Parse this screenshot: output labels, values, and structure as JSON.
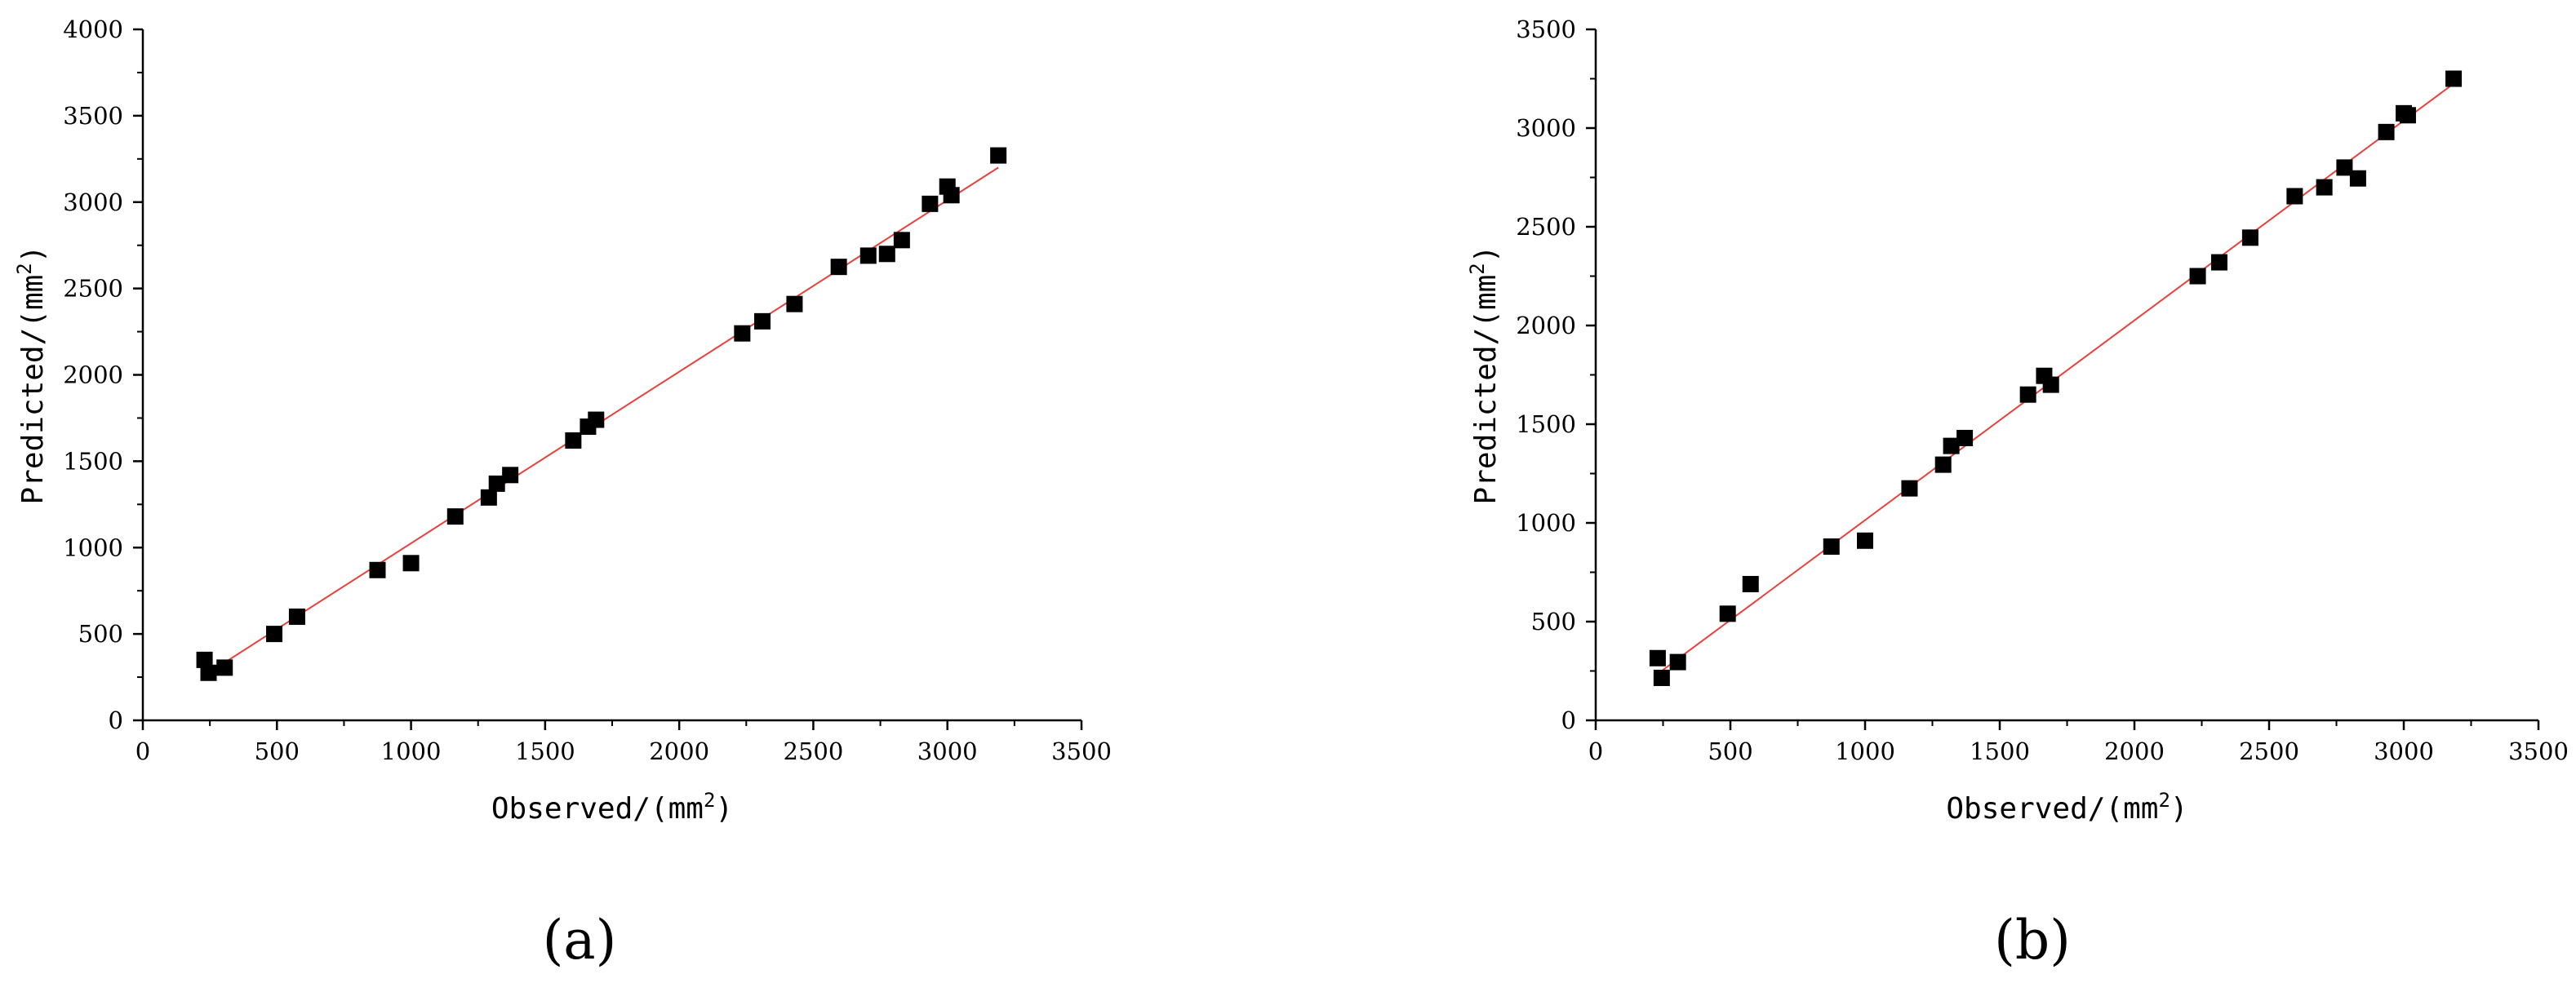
{
  "chart_data": [
    {
      "type": "scatter",
      "panel_label": "(a)",
      "xlabel": "Observed/(mm",
      "xlabel_sup": "2",
      "xlabel_tail": ")",
      "ylabel": "Predicted/(mm",
      "ylabel_sup": "2",
      "ylabel_tail": ")",
      "xlim": [
        0,
        3500
      ],
      "ylim": [
        0,
        4000
      ],
      "xticks": [
        0,
        500,
        1000,
        1500,
        2000,
        2500,
        3000,
        3500
      ],
      "yticks": [
        0,
        500,
        1000,
        1500,
        2000,
        2500,
        3000,
        3500,
        4000
      ],
      "grid": false,
      "marker_color": "#000000",
      "fit_line_color": "#e8413c",
      "fit_line": {
        "x": [
          225,
          3190
        ],
        "y": [
          255,
          3200
        ]
      },
      "points": [
        {
          "x": 230,
          "y": 350
        },
        {
          "x": 245,
          "y": 275
        },
        {
          "x": 305,
          "y": 305
        },
        {
          "x": 490,
          "y": 500
        },
        {
          "x": 575,
          "y": 600
        },
        {
          "x": 875,
          "y": 870
        },
        {
          "x": 1000,
          "y": 910
        },
        {
          "x": 1165,
          "y": 1180
        },
        {
          "x": 1290,
          "y": 1290
        },
        {
          "x": 1320,
          "y": 1370
        },
        {
          "x": 1370,
          "y": 1420
        },
        {
          "x": 1605,
          "y": 1620
        },
        {
          "x": 1660,
          "y": 1700
        },
        {
          "x": 1690,
          "y": 1740
        },
        {
          "x": 2235,
          "y": 2240
        },
        {
          "x": 2310,
          "y": 2310
        },
        {
          "x": 2430,
          "y": 2410
        },
        {
          "x": 2595,
          "y": 2625
        },
        {
          "x": 2705,
          "y": 2690
        },
        {
          "x": 2775,
          "y": 2700
        },
        {
          "x": 2830,
          "y": 2780
        },
        {
          "x": 2935,
          "y": 2990
        },
        {
          "x": 3000,
          "y": 3090
        },
        {
          "x": 3015,
          "y": 3040
        },
        {
          "x": 3190,
          "y": 3270
        }
      ]
    },
    {
      "type": "scatter",
      "panel_label": "(b)",
      "xlabel": "Observed/(mm",
      "xlabel_sup": "2",
      "xlabel_tail": ")",
      "ylabel": "Predicted/(mm",
      "ylabel_sup": "2",
      "ylabel_tail": ")",
      "xlim": [
        0,
        3500
      ],
      "ylim": [
        0,
        3500
      ],
      "xticks": [
        0,
        500,
        1000,
        1500,
        2000,
        2500,
        3000,
        3500
      ],
      "yticks": [
        0,
        500,
        1000,
        1500,
        2000,
        2500,
        3000,
        3500
      ],
      "grid": false,
      "marker_color": "#000000",
      "fit_line_color": "#e8413c",
      "fit_line": {
        "x": [
          225,
          3190
        ],
        "y": [
          230,
          3230
        ]
      },
      "points": [
        {
          "x": 230,
          "y": 315
        },
        {
          "x": 245,
          "y": 215
        },
        {
          "x": 305,
          "y": 295
        },
        {
          "x": 490,
          "y": 540
        },
        {
          "x": 575,
          "y": 690
        },
        {
          "x": 875,
          "y": 880
        },
        {
          "x": 1000,
          "y": 910
        },
        {
          "x": 1165,
          "y": 1175
        },
        {
          "x": 1290,
          "y": 1295
        },
        {
          "x": 1320,
          "y": 1390
        },
        {
          "x": 1370,
          "y": 1430
        },
        {
          "x": 1605,
          "y": 1650
        },
        {
          "x": 1665,
          "y": 1745
        },
        {
          "x": 1690,
          "y": 1700
        },
        {
          "x": 2235,
          "y": 2250
        },
        {
          "x": 2315,
          "y": 2320
        },
        {
          "x": 2430,
          "y": 2445
        },
        {
          "x": 2595,
          "y": 2655
        },
        {
          "x": 2705,
          "y": 2700
        },
        {
          "x": 2780,
          "y": 2800
        },
        {
          "x": 2830,
          "y": 2745
        },
        {
          "x": 2935,
          "y": 2980
        },
        {
          "x": 3000,
          "y": 3075
        },
        {
          "x": 3015,
          "y": 3065
        },
        {
          "x": 3185,
          "y": 3250
        }
      ]
    }
  ]
}
